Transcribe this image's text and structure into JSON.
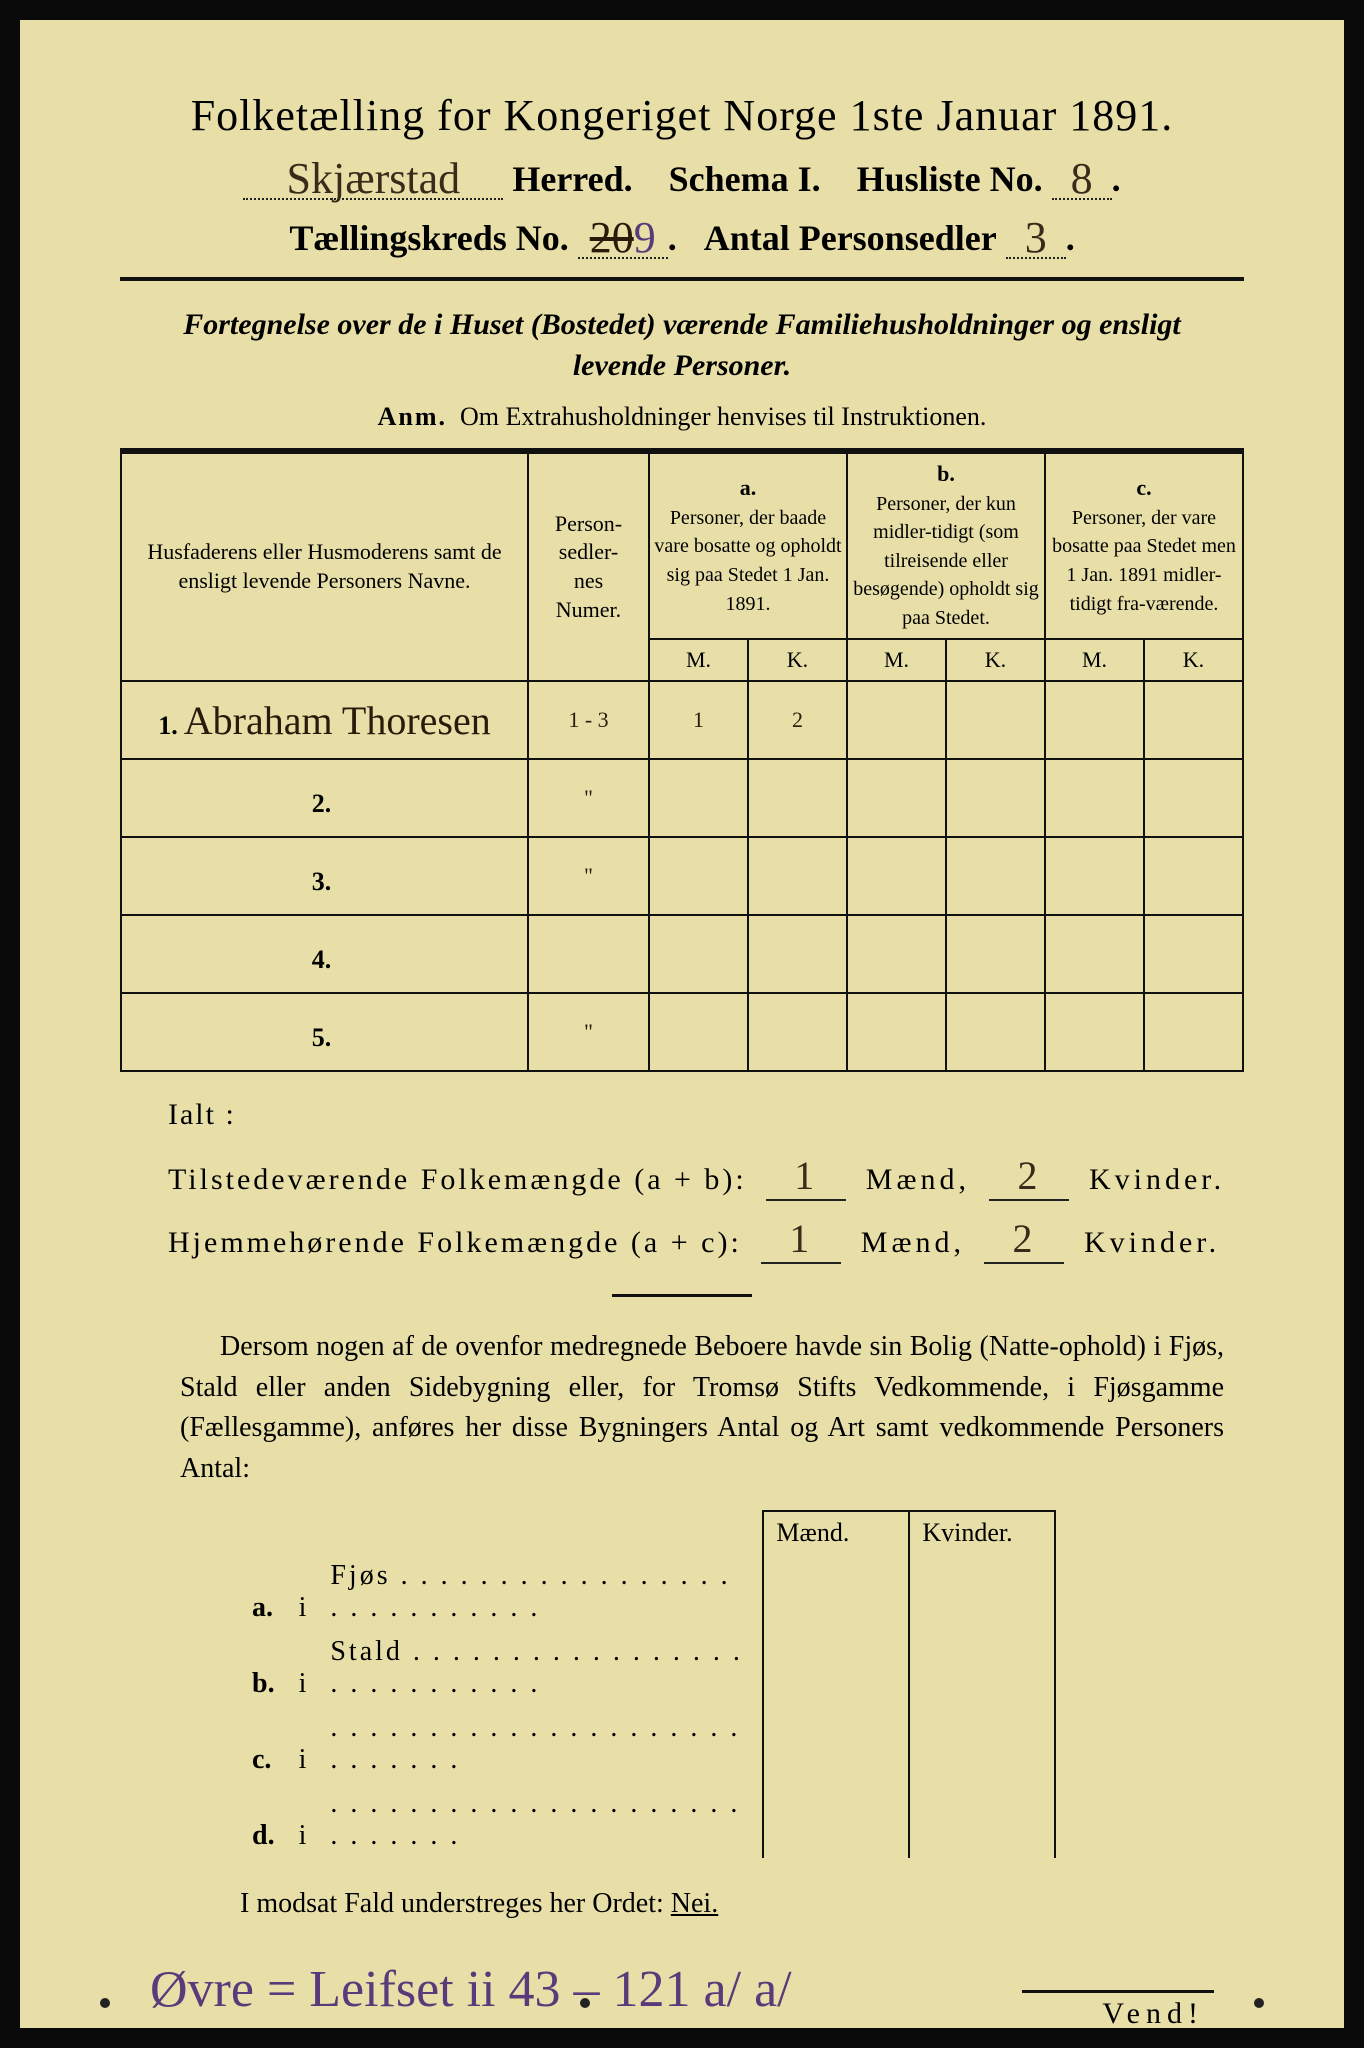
{
  "header": {
    "title": "Folketælling for Kongeriget Norge 1ste Januar 1891.",
    "herred_hand": "Skjærstad",
    "herred_label": "Herred.",
    "schema_label": "Schema I.",
    "husliste_label": "Husliste No.",
    "husliste_no": "8",
    "kreds_label": "Tællingskreds No.",
    "kreds_strike": "20",
    "kreds_no": "9",
    "antal_label": "Antal Personsedler",
    "antal_no": "3"
  },
  "subtitle_line1": "Fortegnelse over de i Huset (Bostedet) værende Familiehusholdninger og ensligt",
  "subtitle_line2": "levende Personer.",
  "anm_bold": "Anm.",
  "anm_text": "Om Extrahusholdninger henvises til Instruktionen.",
  "table": {
    "col_name": "Husfaderens eller Husmoderens samt de ensligt levende Personers Navne.",
    "col_num": "Person-\nsedler-\nnes\nNumer.",
    "col_a_label": "a.",
    "col_a": "Personer, der baade vare bosatte og opholdt sig paa Stedet 1 Jan. 1891.",
    "col_b_label": "b.",
    "col_b": "Personer, der kun midler-tidigt (som tilreisende eller besøgende) opholdt sig paa Stedet.",
    "col_c_label": "c.",
    "col_c": "Personer, der vare bosatte paa Stedet men 1 Jan. 1891 midler-tidigt fra-værende.",
    "M": "M.",
    "K": "K.",
    "rows": [
      {
        "n": "1.",
        "name": "Abraham Thoresen",
        "num": "1 - 3",
        "aM": "1",
        "aK": "2",
        "bM": "",
        "bK": "",
        "cM": "",
        "cK": ""
      },
      {
        "n": "2.",
        "name": "",
        "num": "\"",
        "aM": "",
        "aK": "",
        "bM": "",
        "bK": "",
        "cM": "",
        "cK": ""
      },
      {
        "n": "3.",
        "name": "",
        "num": "\"",
        "aM": "",
        "aK": "",
        "bM": "",
        "bK": "",
        "cM": "",
        "cK": ""
      },
      {
        "n": "4.",
        "name": "",
        "num": "",
        "aM": "",
        "aK": "",
        "bM": "",
        "bK": "",
        "cM": "",
        "cK": ""
      },
      {
        "n": "5.",
        "name": "",
        "num": "\"",
        "aM": "",
        "aK": "",
        "bM": "",
        "bK": "",
        "cM": "",
        "cK": ""
      }
    ]
  },
  "ialt": {
    "label": "Ialt :",
    "row1_label": "Tilstedeværende Folkemængde (a + b):",
    "row2_label": "Hjemmehørende Folkemængde (a + c):",
    "maend": "Mænd,",
    "kvinder": "Kvinder.",
    "r1_m": "1",
    "r1_k": "2",
    "r2_m": "1",
    "r2_k": "2"
  },
  "para": "Dersom nogen af de ovenfor medregnede Beboere havde sin Bolig (Natte-ophold) i Fjøs, Stald eller anden Sidebygning eller, for Tromsø Stifts Vedkommende, i Fjøsgamme (Fællesgamme), anføres her disse Bygningers Antal og Art samt vedkommende Personers Antal:",
  "subtable": {
    "maend": "Mænd.",
    "kvinder": "Kvinder.",
    "rows": [
      {
        "k": "a.",
        "i": "i",
        "label": "Fjøs"
      },
      {
        "k": "b.",
        "i": "i",
        "label": "Stald"
      },
      {
        "k": "c.",
        "i": "i",
        "label": ""
      },
      {
        "k": "d.",
        "i": "i",
        "label": ""
      }
    ]
  },
  "modsat": "I modsat Fald understreges her Ordet:",
  "nei": "Nei.",
  "footer_hand": "Øvre = Leifset ii 43 – 121 a/ a/",
  "vend": "Vend!",
  "colors": {
    "paper": "#e8dfa8",
    "ink": "#111111",
    "hand_brown": "#3a2a1a",
    "hand_purple": "#5a3a7a",
    "border": "#0a0a0a"
  }
}
